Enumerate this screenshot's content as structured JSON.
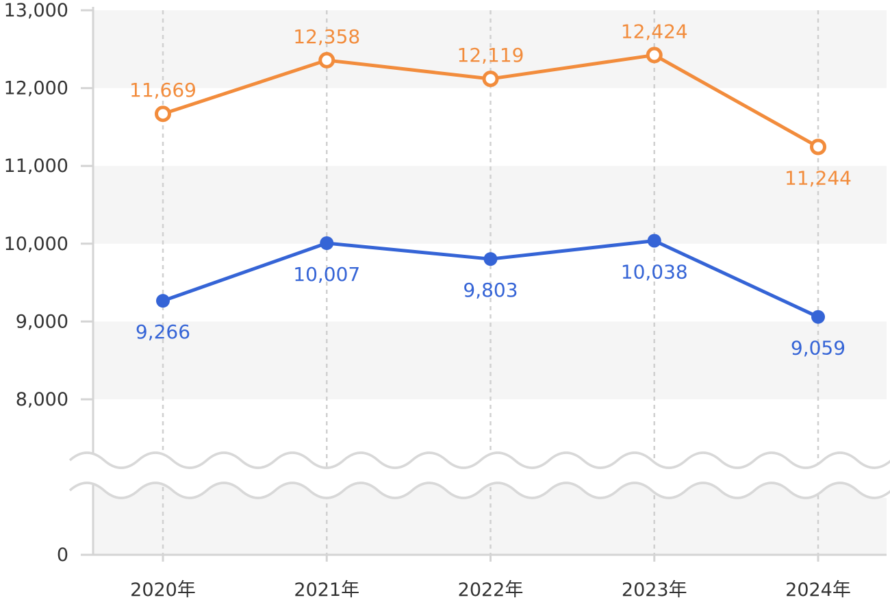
{
  "chart_data": {
    "type": "line",
    "categories": [
      "2020年",
      "2021年",
      "2022年",
      "2023年",
      "2024年"
    ],
    "y_ticks": [
      "0",
      "8,000",
      "9,000",
      "10,000",
      "11,000",
      "12,000",
      "13,000"
    ],
    "ylim": [
      0,
      13000
    ],
    "axis_break": [
      0,
      8000
    ],
    "grid": "alternating horizontal bands, dashed vertical lines at categories",
    "legend": "none",
    "series": [
      {
        "color": "#f28c3c",
        "marker": "hollow-circle",
        "values": [
          11669,
          12358,
          12119,
          12424,
          11244
        ],
        "labels": [
          "11,669",
          "12,358",
          "12,119",
          "12,424",
          "11,244"
        ],
        "label_positions": [
          "above",
          "above",
          "above",
          "above",
          "below"
        ]
      },
      {
        "color": "#3564d6",
        "marker": "filled-circle",
        "values": [
          9266,
          10007,
          9803,
          10038,
          9059
        ],
        "labels": [
          "9,266",
          "10,007",
          "9,803",
          "10,038",
          "9,059"
        ],
        "label_positions": [
          "below",
          "below",
          "below",
          "below",
          "below"
        ]
      }
    ]
  }
}
